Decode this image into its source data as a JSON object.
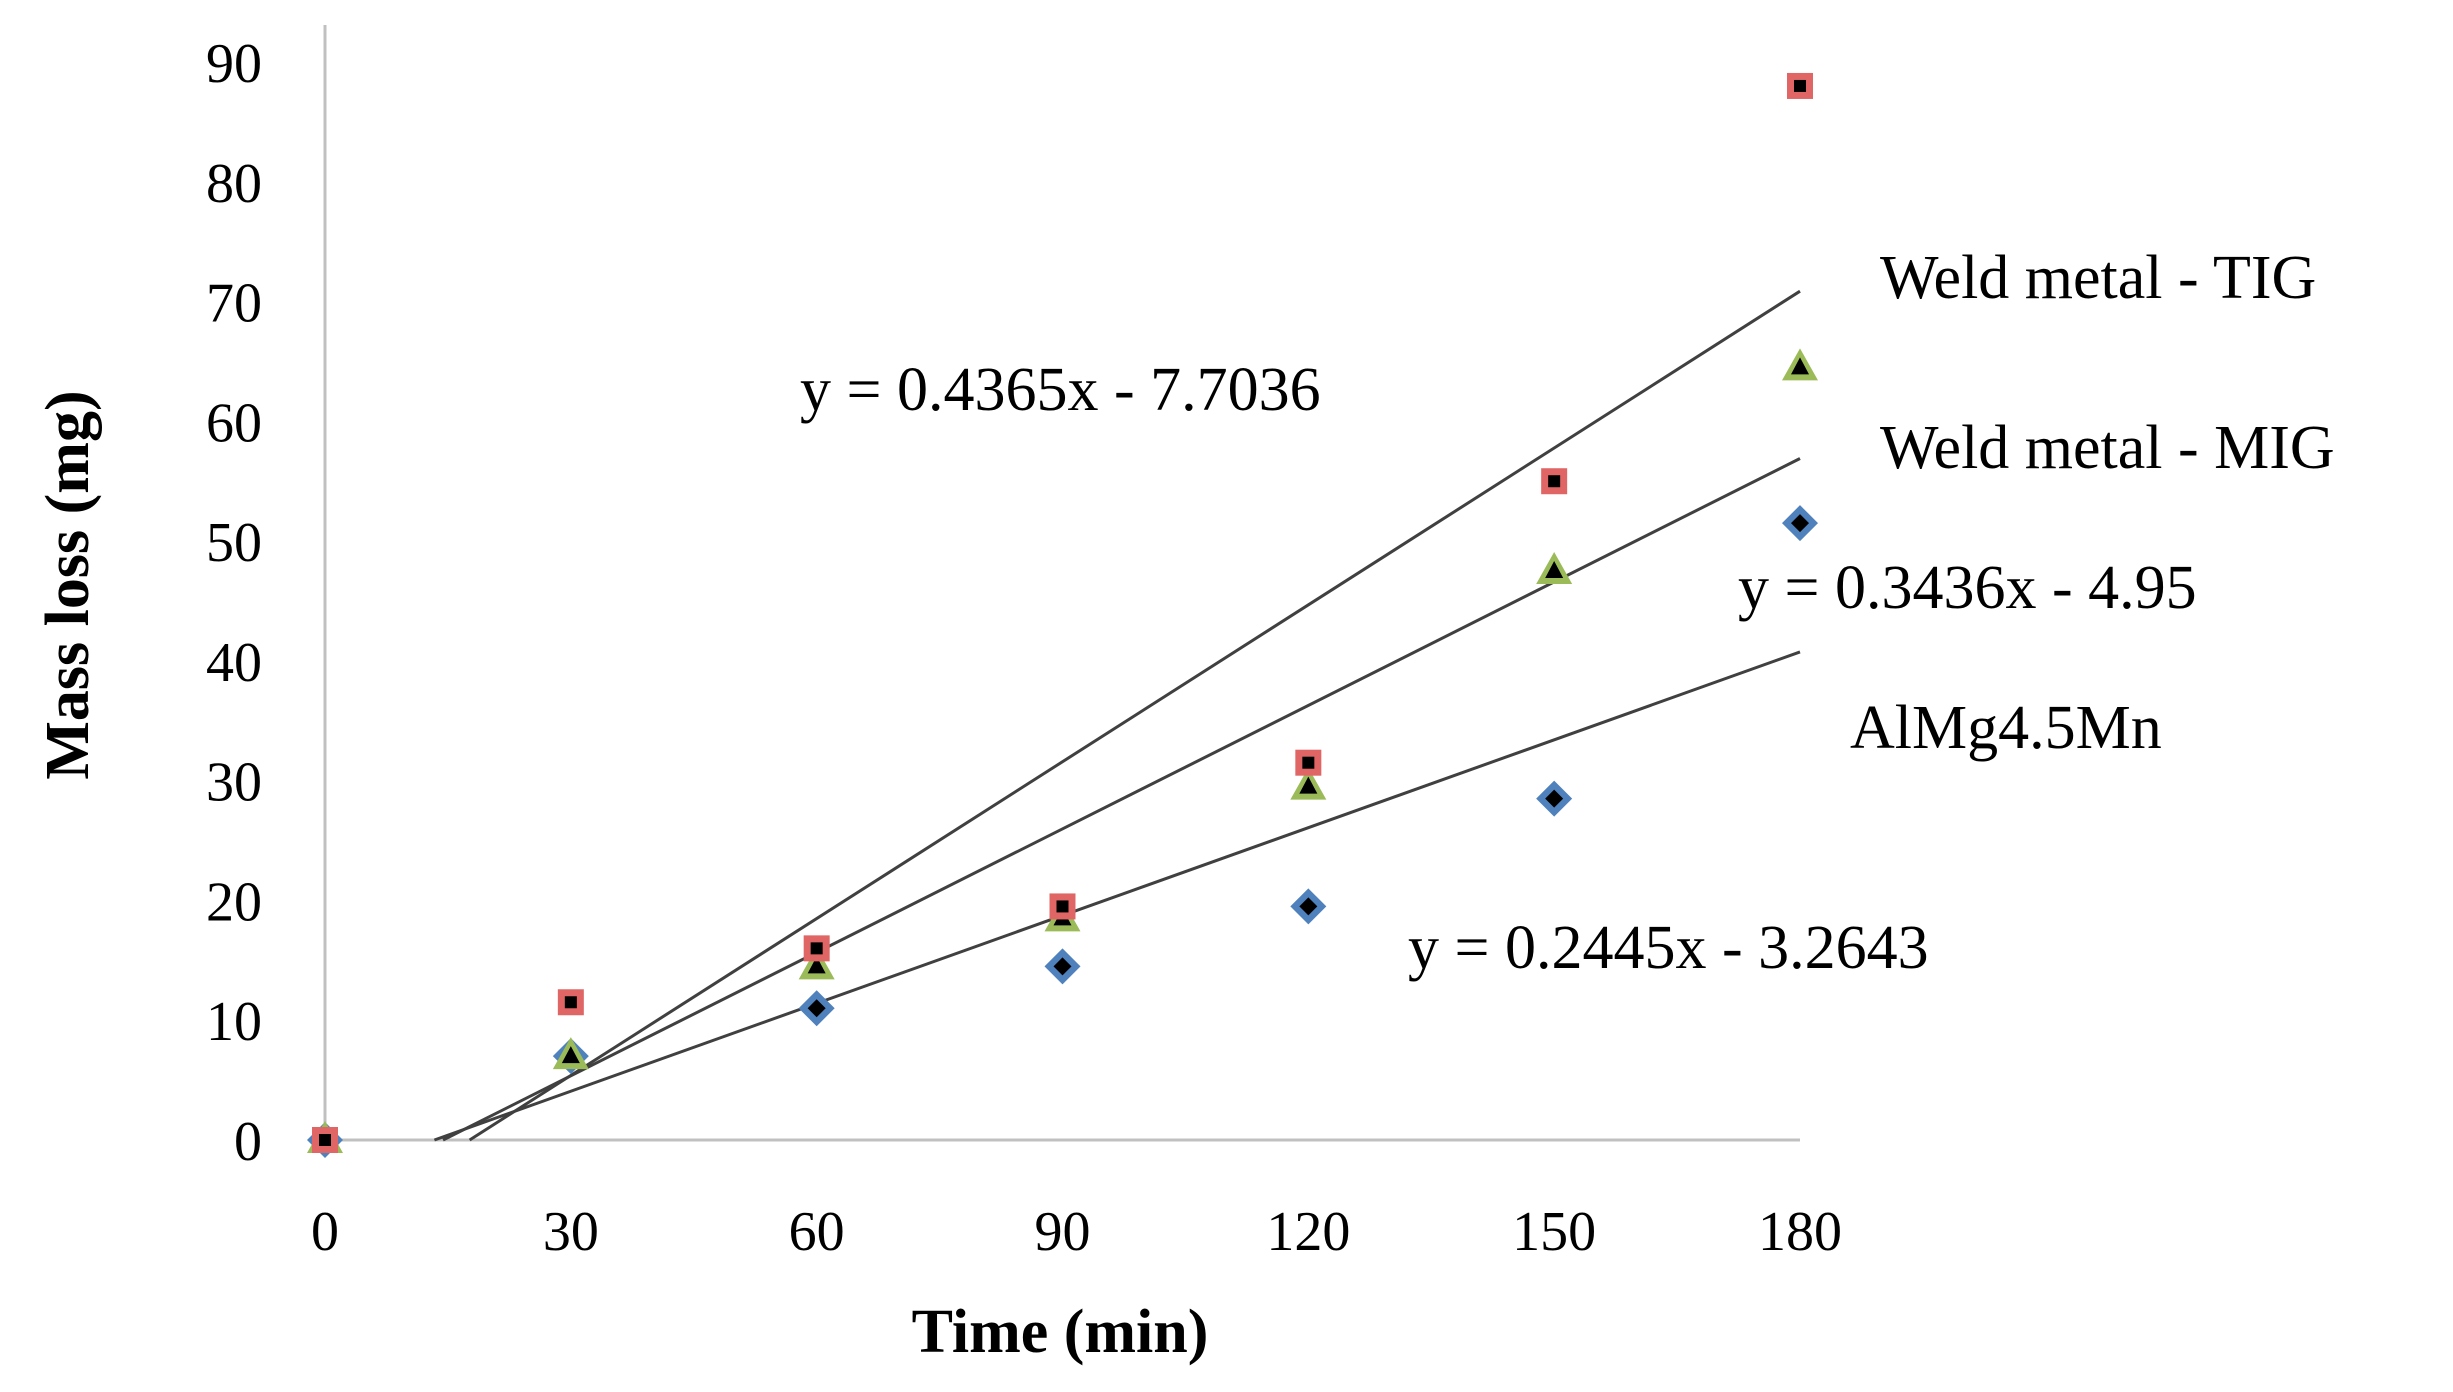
{
  "chart_data": {
    "type": "scatter",
    "title": "",
    "xlabel": "Time (min)",
    "ylabel": "Mass loss (mg)",
    "xlim": [
      0,
      180
    ],
    "ylim": [
      0,
      90
    ],
    "xticks": [
      "0",
      "30",
      "60",
      "90",
      "120",
      "150",
      "180"
    ],
    "yticks": [
      "0",
      "10",
      "20",
      "30",
      "40",
      "50",
      "60",
      "70",
      "80",
      "90"
    ],
    "grid": false,
    "x": [
      0,
      30,
      60,
      90,
      120,
      150,
      180
    ],
    "series": [
      {
        "name": "Weld metal - TIG",
        "marker": "square",
        "color": "#e06666",
        "inner_color": "#000000",
        "values": [
          0,
          11.5,
          16,
          19.5,
          31.5,
          55,
          88
        ],
        "trend_slope": 0.4365,
        "trend_intercept": -7.7036,
        "equation": "y = 0.4365x - 7.7036"
      },
      {
        "name": "Weld metal - MIG",
        "marker": "triangle",
        "color": "#9bbb59",
        "inner_color": "#000000",
        "values": [
          0,
          7,
          14.5,
          18.5,
          29.5,
          47.5,
          64.5
        ],
        "trend_slope": 0.3436,
        "trend_intercept": -4.95,
        "equation": "y = 0.3436x - 4.95"
      },
      {
        "name": "AlMg4.5Mn",
        "marker": "diamond",
        "color": "#4f81bd",
        "inner_color": "#000000",
        "values": [
          0,
          7,
          11,
          14.5,
          19.5,
          28.5,
          51.5
        ],
        "trend_slope": 0.2445,
        "trend_intercept": -3.2643,
        "equation": "y = 0.2445x - 3.2643"
      }
    ],
    "axis_color": "#c0c0c0",
    "trendline_color": "#404040"
  }
}
